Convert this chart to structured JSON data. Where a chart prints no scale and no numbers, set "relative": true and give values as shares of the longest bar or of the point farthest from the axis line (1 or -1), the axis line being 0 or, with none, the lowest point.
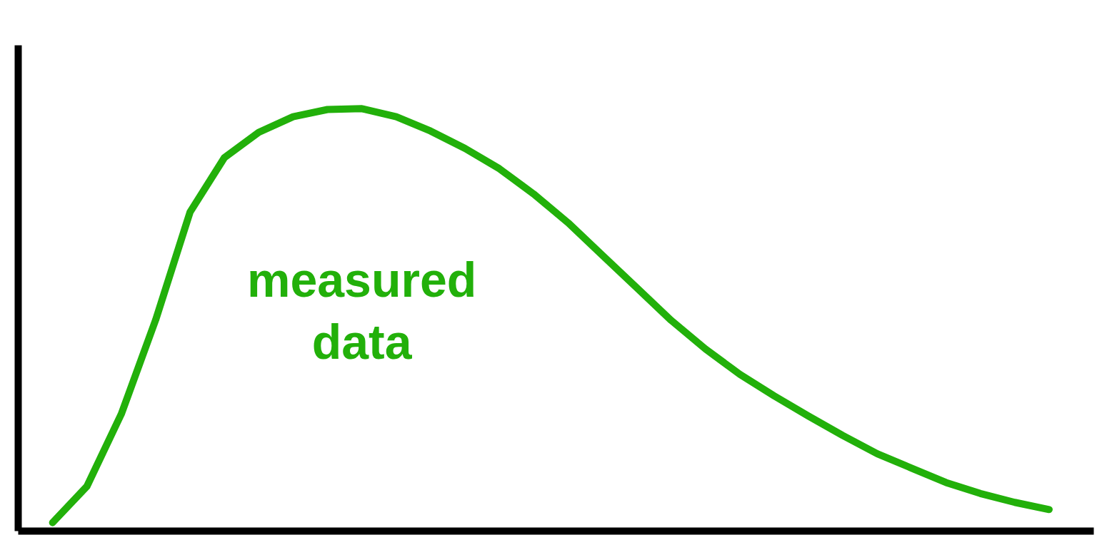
{
  "chart_data": {
    "type": "line",
    "relative": true,
    "categories": [
      null,
      null,
      null,
      null,
      null,
      null,
      null,
      null,
      null,
      null,
      null,
      null,
      null,
      null,
      null,
      null,
      null,
      null,
      null,
      null,
      null,
      null,
      null,
      null,
      null,
      null,
      null,
      null,
      null,
      null
    ],
    "series": [
      {
        "color": "#22b00a",
        "values": [
          0.02,
          0.106,
          0.277,
          0.5,
          0.755,
          0.884,
          0.944,
          0.981,
          0.998,
          1.0,
          0.981,
          0.947,
          0.906,
          0.858,
          0.798,
          0.73,
          0.653,
          0.576,
          0.499,
          0.431,
          0.371,
          0.32,
          0.272,
          0.226,
          0.183,
          0.149,
          0.115,
          0.089,
          0.068,
          0.051
        ]
      }
    ],
    "annotations": [
      "measured\ndata"
    ],
    "grid": false,
    "marker": "none",
    "line_style": "solid"
  }
}
